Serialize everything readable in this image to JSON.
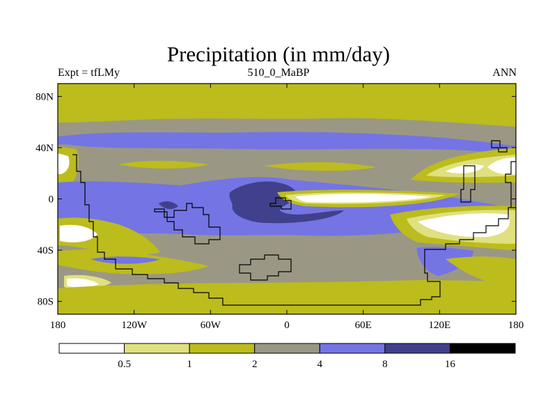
{
  "chart_data": {
    "type": "heatmap",
    "title": "Precipitation (in mm/day)",
    "subtitle_left": "Expt = tfLMy",
    "subtitle_center": "510_0_MaBP",
    "subtitle_right": "ANN",
    "x_ticks": [
      "180",
      "120W",
      "60W",
      "0",
      "60E",
      "120E",
      "180"
    ],
    "x_tick_values": [
      -180,
      -120,
      -60,
      0,
      60,
      120,
      180
    ],
    "y_ticks": [
      "80N",
      "40N",
      "0",
      "40S",
      "80S"
    ],
    "y_tick_values": [
      80,
      40,
      0,
      -40,
      -80
    ],
    "xlim": [
      -180,
      180
    ],
    "ylim": [
      -90,
      90
    ],
    "colorbar": {
      "levels": [
        "0.5",
        "1",
        "2",
        "4",
        "8",
        "16"
      ],
      "colors": [
        "#ffffff",
        "#e0e080",
        "#bcbc1c",
        "#9a9884",
        "#7474e4",
        "#40408c",
        "#000000"
      ]
    }
  }
}
